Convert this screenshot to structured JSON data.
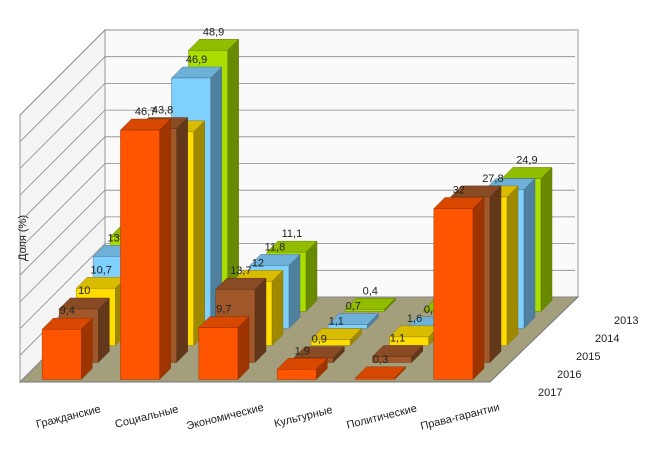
{
  "chart_data": {
    "type": "bar3d",
    "ylabel": "Доля (%)",
    "categories": [
      "Гражданские",
      "Социальные",
      "Экономические",
      "Культурные",
      "Политические",
      "Права-гарантии"
    ],
    "ylim": [
      0,
      50
    ],
    "yticks": [
      0,
      5,
      10,
      15,
      20,
      25,
      30,
      35,
      40,
      45,
      50
    ],
    "grid": true,
    "series": [
      {
        "name": "2017",
        "color": "#ff5500",
        "values": [
          9.4,
          46.7,
          9.7,
          1.9,
          0.3,
          32
        ],
        "value_labels": [
          "9,4",
          "46,7",
          "9,7",
          "1,9",
          "0,3",
          "32"
        ]
      },
      {
        "name": "2016",
        "color": "#a0582a",
        "values": [
          10,
          43.8,
          13.7,
          0.9,
          1.1,
          31
        ],
        "value_labels": [
          "10",
          "43,8",
          "13,7",
          "0,9",
          "1,1",
          null
        ]
      },
      {
        "name": "2015",
        "color": "#ffdd00",
        "values": [
          10.7,
          40,
          12,
          1.1,
          1.6,
          27.8
        ],
        "value_labels": [
          "10,7",
          null,
          "12",
          "1,1",
          "1,6",
          "27,8"
        ]
      },
      {
        "name": "2014",
        "color": "#80d0ff",
        "values": [
          13.5,
          46.9,
          11.8,
          0.7,
          0.1,
          26
        ],
        "value_labels": [
          "13,5",
          "46,9",
          "11,8",
          "0,7",
          "0,1",
          null
        ]
      },
      {
        "name": "2013",
        "color": "#aadd00",
        "values": [
          14,
          48.9,
          11.1,
          0.4,
          0.2,
          24.9
        ],
        "value_labels": [
          null,
          "48,9",
          "11,1",
          "0,4",
          null,
          "24,9"
        ]
      }
    ]
  }
}
